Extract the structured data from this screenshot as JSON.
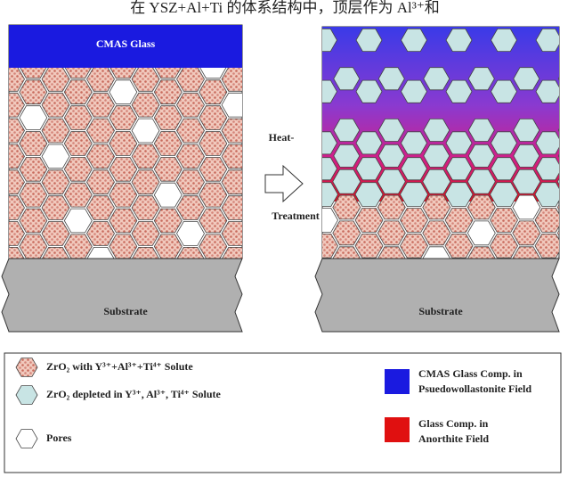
{
  "header": {
    "text": "在 YSZ+Al+Ti 的体系结构中，顶层作为 Al³⁺和"
  },
  "left_panel": {
    "glass_label": "CMAS Glass",
    "substrate_label": "Substrate"
  },
  "arrow": {
    "top_label": "Heat-",
    "bottom_label": "Treatment"
  },
  "right_panel": {
    "substrate_label": "Substrate"
  },
  "legend": {
    "items": [
      {
        "label": "ZrO₂ with Y³⁺+Al³⁺+Ti⁴⁺ Solute"
      },
      {
        "label": "ZrO₂ depleted in Y³⁺, Al³⁺, Ti⁴⁺ Solute"
      },
      {
        "label": "Pores"
      },
      {
        "label_line1": "CMAS Glass Comp. in",
        "label_line2": "Psuedowollastonite Field"
      },
      {
        "label_line1": "Glass Comp. in",
        "label_line2": "Anorthite Field"
      }
    ]
  }
}
